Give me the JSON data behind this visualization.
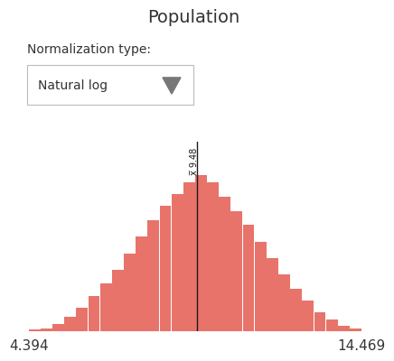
{
  "title": "Population",
  "bar_color": "#E8736A",
  "x_min": 4.394,
  "x_max": 14.469,
  "mean_line_x": 9.48,
  "mean_label": "x̅ 9.48",
  "x_tick_left": "4.394",
  "x_tick_right": "14.469",
  "normalization_label": "Normalization type:",
  "dropdown_label": "Natural log",
  "background_color": "#ffffff",
  "title_fontsize": 14,
  "label_fontsize": 10,
  "tick_fontsize": 11,
  "bin_heights": [
    0.5,
    1,
    3,
    6,
    10,
    15,
    20,
    26,
    33,
    40,
    47,
    53,
    58,
    63,
    66,
    63,
    57,
    51,
    45,
    38,
    31,
    24,
    18,
    13,
    8,
    5,
    2,
    1
  ],
  "n_bins": 28
}
